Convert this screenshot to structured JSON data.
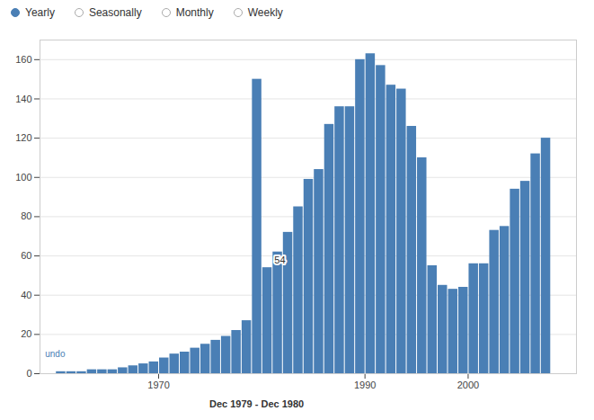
{
  "chart_data": {
    "type": "bar",
    "x": [
      1960,
      1961,
      1962,
      1963,
      1964,
      1965,
      1966,
      1967,
      1968,
      1969,
      1970,
      1971,
      1972,
      1973,
      1974,
      1975,
      1976,
      1977,
      1978,
      1979,
      1980,
      1981,
      1982,
      1983,
      1984,
      1985,
      1986,
      1987,
      1988,
      1989,
      1990,
      1991,
      1992,
      1993,
      1994,
      1995,
      1996,
      1997,
      1998,
      1999,
      2000,
      2001,
      2002,
      2003,
      2004,
      2005,
      2006,
      2007
    ],
    "values": [
      1,
      1,
      1,
      2,
      2,
      2,
      3,
      4,
      5,
      6,
      8,
      10,
      11,
      13,
      15,
      17,
      19,
      22,
      27,
      150,
      54,
      62,
      72,
      85,
      99,
      104,
      127,
      136,
      136,
      160,
      163,
      157,
      147,
      145,
      126,
      110,
      55,
      45,
      43,
      44,
      56,
      56,
      73,
      75,
      94,
      98,
      112,
      120
    ],
    "color": "#4a7fb5",
    "xlim": [
      1958.5,
      2010.5
    ],
    "xticks": [
      1970,
      1990,
      2000
    ],
    "ylim": [
      0,
      170
    ],
    "yticks": [
      0,
      20,
      40,
      60,
      80,
      100,
      120,
      140,
      160
    ],
    "grid": true,
    "radio_labels": [
      "Yearly",
      "Seasonally",
      "Monthly",
      "Weekly"
    ],
    "radio_selected": "Yearly",
    "annotations": [
      {
        "text": "54",
        "x": 1980,
        "y": 54
      },
      {
        "text": "Dec 1979 - Dec 1980",
        "x": 1979.5,
        "y": 0
      },
      {
        "text": "undo",
        "x": 1959,
        "y": 7
      }
    ]
  }
}
